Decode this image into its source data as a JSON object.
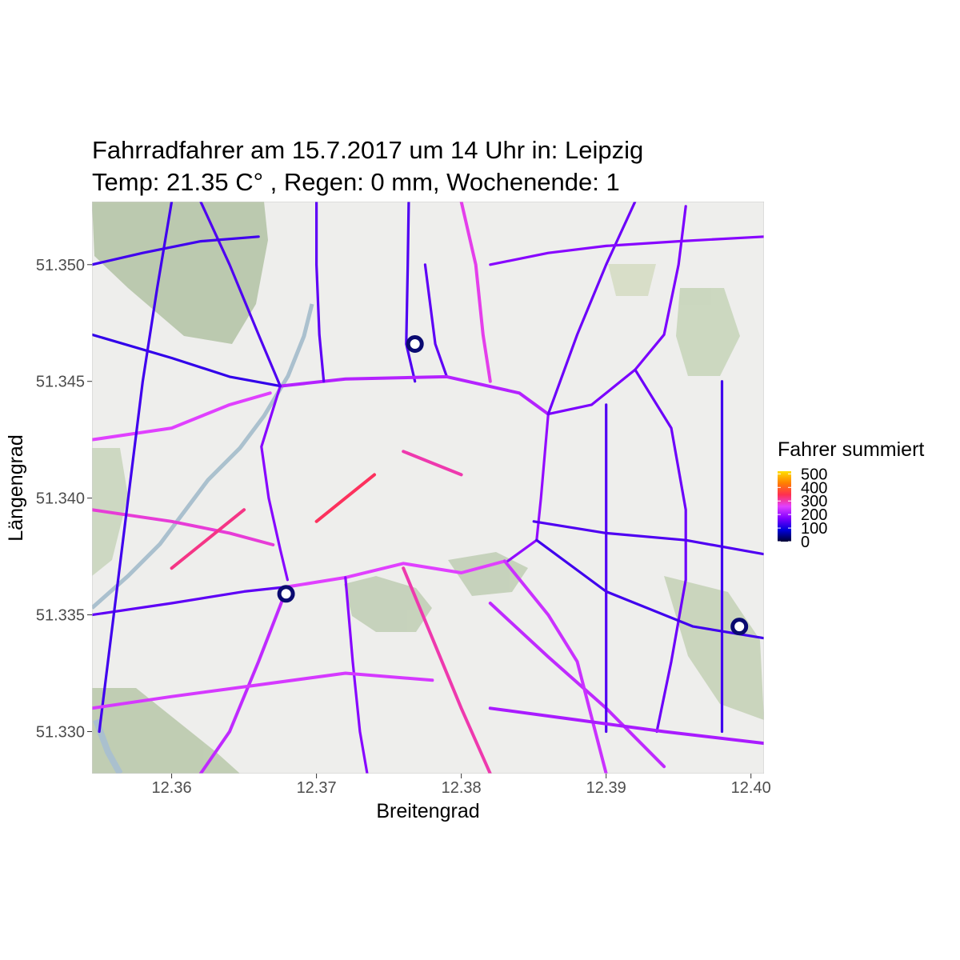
{
  "chart_data": {
    "type": "map",
    "title_line1": "Fahrradfahrer am 15.7.2017 um 14 Uhr in: Leipzig",
    "title_line2": "Temp: 21.35 C° , Regen: 0 mm, Wochenende: 1",
    "xlabel": "Breitengrad",
    "ylabel": "Längengrad",
    "xlim": [
      12.3545,
      12.4009
    ],
    "ylim": [
      51.3282,
      51.3527
    ],
    "x_ticks": [
      {
        "value": 12.36,
        "label": "12.36"
      },
      {
        "value": 12.37,
        "label": "12.37"
      },
      {
        "value": 12.38,
        "label": "12.38"
      },
      {
        "value": 12.39,
        "label": "12.39"
      },
      {
        "value": 12.4,
        "label": "12.40"
      }
    ],
    "y_ticks": [
      {
        "value": 51.33,
        "label": "51.330"
      },
      {
        "value": 51.335,
        "label": "51.335"
      },
      {
        "value": 51.34,
        "label": "51.340"
      },
      {
        "value": 51.345,
        "label": "51.345"
      },
      {
        "value": 51.35,
        "label": "51.350"
      }
    ],
    "legend": {
      "title": "Fahrer summiert",
      "position": "right",
      "range": [
        0,
        520
      ],
      "ticks": [
        {
          "value": 0,
          "label": "0"
        },
        {
          "value": 100,
          "label": "100"
        },
        {
          "value": 200,
          "label": "200"
        },
        {
          "value": 300,
          "label": "300"
        },
        {
          "value": 400,
          "label": "400"
        },
        {
          "value": 500,
          "label": "500"
        }
      ],
      "gradient_colors": [
        "#000033",
        "#0000dd",
        "#8000ff",
        "#e040ff",
        "#ff3050",
        "#ff8000",
        "#ffe000"
      ]
    },
    "stations": [
      {
        "lon": 12.3768,
        "lat": 51.3466
      },
      {
        "lon": 12.3679,
        "lat": 51.3359
      },
      {
        "lon": 12.3992,
        "lat": 51.3345
      }
    ],
    "segments": [
      {
        "path": [
          [
            12.3764,
            51.354
          ],
          [
            12.3763,
            51.35
          ],
          [
            12.3762,
            51.3466
          ],
          [
            12.3768,
            51.345
          ]
        ],
        "value": 140
      },
      {
        "path": [
          [
            12.3775,
            51.35
          ],
          [
            12.3782,
            51.3466
          ],
          [
            12.379,
            51.3452
          ]
        ],
        "value": 150
      },
      {
        "path": [
          [
            12.3675,
            51.3448
          ],
          [
            12.372,
            51.3451
          ],
          [
            12.379,
            51.3452
          ],
          [
            12.384,
            51.3445
          ],
          [
            12.386,
            51.3436
          ]
        ],
        "value": 220
      },
      {
        "path": [
          [
            12.3675,
            51.3448
          ],
          [
            12.3662,
            51.3422
          ],
          [
            12.3667,
            51.34
          ],
          [
            12.3675,
            51.3378
          ],
          [
            12.368,
            51.3365
          ]
        ],
        "value": 180
      },
      {
        "path": [
          [
            12.368,
            51.3362
          ],
          [
            12.372,
            51.3366
          ],
          [
            12.376,
            51.3372
          ],
          [
            12.38,
            51.3368
          ],
          [
            12.383,
            51.3373
          ]
        ],
        "value": 260
      },
      {
        "path": [
          [
            12.386,
            51.3436
          ],
          [
            12.3855,
            51.34
          ],
          [
            12.3852,
            51.3382
          ],
          [
            12.3832,
            51.3373
          ]
        ],
        "value": 190
      },
      {
        "path": [
          [
            12.386,
            51.3436
          ],
          [
            12.389,
            51.344
          ],
          [
            12.392,
            51.3455
          ],
          [
            12.394,
            51.347
          ],
          [
            12.395,
            51.35
          ],
          [
            12.3955,
            51.3525
          ]
        ],
        "value": 170
      },
      {
        "path": [
          [
            12.392,
            51.3455
          ],
          [
            12.3945,
            51.343
          ],
          [
            12.3955,
            51.3395
          ],
          [
            12.3955,
            51.3365
          ],
          [
            12.3945,
            51.333
          ],
          [
            12.3935,
            51.33
          ]
        ],
        "value": 160
      },
      {
        "path": [
          [
            12.385,
            51.339
          ],
          [
            12.39,
            51.3385
          ],
          [
            12.3955,
            51.3382
          ],
          [
            12.4009,
            51.3376
          ]
        ],
        "value": 140
      },
      {
        "path": [
          [
            12.382,
            51.3355
          ],
          [
            12.386,
            51.3332
          ],
          [
            12.39,
            51.331
          ],
          [
            12.394,
            51.3285
          ]
        ],
        "value": 230
      },
      {
        "path": [
          [
            12.3852,
            51.3382
          ],
          [
            12.39,
            51.336
          ],
          [
            12.396,
            51.3345
          ],
          [
            12.4009,
            51.334
          ]
        ],
        "value": 130
      },
      {
        "path": [
          [
            12.3545,
            51.347
          ],
          [
            12.36,
            51.346
          ],
          [
            12.364,
            51.3452
          ],
          [
            12.3675,
            51.3448
          ]
        ],
        "value": 120
      },
      {
        "path": [
          [
            12.3545,
            51.3425
          ],
          [
            12.36,
            51.343
          ],
          [
            12.364,
            51.344
          ],
          [
            12.3668,
            51.3445
          ]
        ],
        "value": 260
      },
      {
        "path": [
          [
            12.3545,
            51.3395
          ],
          [
            12.36,
            51.339
          ],
          [
            12.364,
            51.3385
          ],
          [
            12.367,
            51.338
          ]
        ],
        "value": 280
      },
      {
        "path": [
          [
            12.3545,
            51.335
          ],
          [
            12.36,
            51.3355
          ],
          [
            12.365,
            51.336
          ],
          [
            12.368,
            51.3362
          ]
        ],
        "value": 150
      },
      {
        "path": [
          [
            12.368,
            51.3362
          ],
          [
            12.366,
            51.333
          ],
          [
            12.364,
            51.33
          ],
          [
            12.362,
            51.3282
          ]
        ],
        "value": 230
      },
      {
        "path": [
          [
            12.376,
            51.337
          ],
          [
            12.378,
            51.334
          ],
          [
            12.38,
            51.331
          ],
          [
            12.382,
            51.3282
          ]
        ],
        "value": 300
      },
      {
        "path": [
          [
            12.372,
            51.3366
          ],
          [
            12.3725,
            51.333
          ],
          [
            12.373,
            51.33
          ],
          [
            12.3735,
            51.3282
          ]
        ],
        "value": 180
      },
      {
        "path": [
          [
            12.383,
            51.3373
          ],
          [
            12.386,
            51.335
          ],
          [
            12.388,
            51.333
          ],
          [
            12.39,
            51.3282
          ]
        ],
        "value": 240
      },
      {
        "path": [
          [
            12.37,
            51.3527
          ],
          [
            12.37,
            51.35
          ],
          [
            12.3702,
            51.347
          ],
          [
            12.3705,
            51.345
          ]
        ],
        "value": 150
      },
      {
        "path": [
          [
            12.38,
            51.3527
          ],
          [
            12.381,
            51.35
          ],
          [
            12.3815,
            51.347
          ],
          [
            12.382,
            51.345
          ]
        ],
        "value": 270
      },
      {
        "path": [
          [
            12.362,
            51.3527
          ],
          [
            12.364,
            51.35
          ],
          [
            12.366,
            51.347
          ],
          [
            12.3675,
            51.3448
          ]
        ],
        "value": 140
      },
      {
        "path": [
          [
            12.386,
            51.3436
          ],
          [
            12.388,
            51.347
          ],
          [
            12.39,
            51.35
          ],
          [
            12.392,
            51.3527
          ]
        ],
        "value": 160
      },
      {
        "path": [
          [
            12.36,
            51.3527
          ],
          [
            12.359,
            51.349
          ],
          [
            12.358,
            51.345
          ],
          [
            12.357,
            51.34
          ],
          [
            12.356,
            51.335
          ],
          [
            12.355,
            51.33
          ]
        ],
        "value": 130
      },
      {
        "path": [
          [
            12.39,
            51.344
          ],
          [
            12.39,
            51.34
          ],
          [
            12.39,
            51.336
          ],
          [
            12.39,
            51.33
          ]
        ],
        "value": 140
      },
      {
        "path": [
          [
            12.398,
            51.345
          ],
          [
            12.398,
            51.34
          ],
          [
            12.398,
            51.336
          ],
          [
            12.398,
            51.33
          ]
        ],
        "value": 130
      },
      {
        "path": [
          [
            12.3545,
            51.331
          ],
          [
            12.36,
            51.3315
          ],
          [
            12.366,
            51.332
          ],
          [
            12.372,
            51.3325
          ],
          [
            12.378,
            51.3322
          ]
        ],
        "value": 250
      },
      {
        "path": [
          [
            12.382,
            51.331
          ],
          [
            12.388,
            51.3305
          ],
          [
            12.394,
            51.33
          ],
          [
            12.4009,
            51.3295
          ]
        ],
        "value": 210
      },
      {
        "path": [
          [
            12.3545,
            51.35
          ],
          [
            12.358,
            51.3505
          ],
          [
            12.362,
            51.351
          ],
          [
            12.366,
            51.3512
          ]
        ],
        "value": 130
      },
      {
        "path": [
          [
            12.382,
            51.35
          ],
          [
            12.386,
            51.3505
          ],
          [
            12.39,
            51.3508
          ],
          [
            12.395,
            51.351
          ],
          [
            12.4009,
            51.3512
          ]
        ],
        "value": 180
      },
      {
        "path": [
          [
            12.37,
            51.339
          ],
          [
            12.372,
            51.34
          ],
          [
            12.374,
            51.341
          ]
        ],
        "value": 340
      },
      {
        "path": [
          [
            12.36,
            51.337
          ],
          [
            12.362,
            51.338
          ],
          [
            12.365,
            51.3395
          ]
        ],
        "value": 320
      },
      {
        "path": [
          [
            12.376,
            51.342
          ],
          [
            12.378,
            51.3415
          ],
          [
            12.38,
            51.341
          ]
        ],
        "value": 300
      }
    ]
  }
}
